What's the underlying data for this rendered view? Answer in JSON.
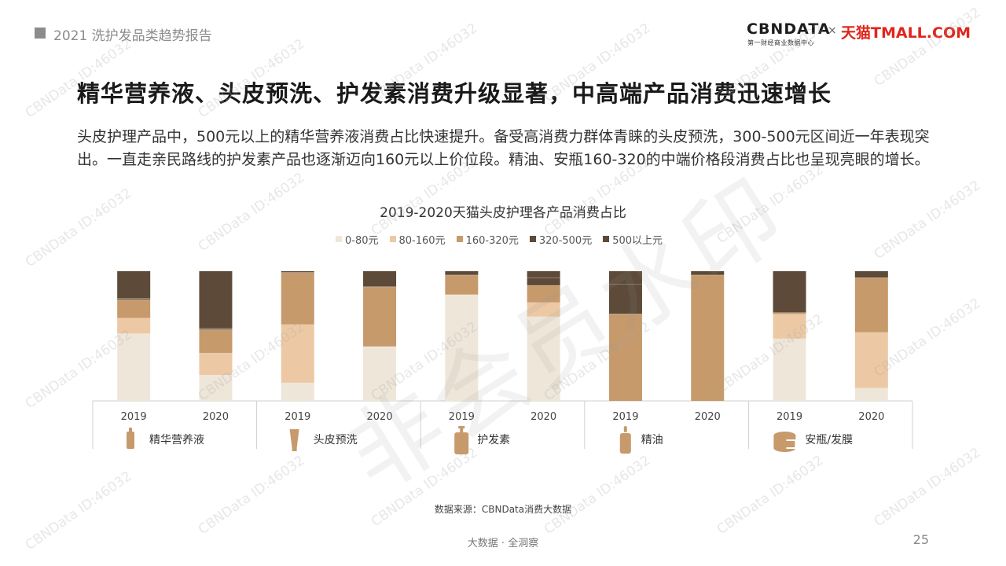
{
  "header": {
    "report_title": "2021 洗护发品类趋势报告",
    "brand_cbn": "CBNDATA",
    "brand_cbn_sub": "第一财经商业数据中心",
    "brand_x": "×",
    "brand_tmall": "天猫TMALL.COM"
  },
  "title": "精华营养液、头皮预洗、护发素消费升级显著，中高端产品消费迅速增长",
  "description": "头皮护理产品中，500元以上的精华营养液消费占比快速提升。备受高消费力群体青睐的头皮预洗，300-500元区间近一年表现突出。一直走亲民路线的护发素产品也逐渐迈向160元以上价位段。精油、安瓶160-320的中端价格段消费占比也呈现亮眼的增长。",
  "chart_data": {
    "type": "bar",
    "stacked": true,
    "normalized": true,
    "title": "2019-2020天猫头皮护理各产品消费占比",
    "legend_position": "top",
    "series_names": [
      "0-80元",
      "80-160元",
      "160-320元",
      "320-500元",
      "500以上元"
    ],
    "colors": [
      "#efe6da",
      "#ecc9a4",
      "#c69a6b",
      "#5d4a38",
      "#5d4a38"
    ],
    "groups": [
      {
        "name": "精华营养液",
        "icon": "serum-bottle-icon",
        "bars": [
          {
            "year": "2019",
            "values": [
              52,
              12,
              14,
              1,
              21
            ]
          },
          {
            "year": "2020",
            "values": [
              20,
              17,
              18,
              1,
              44
            ]
          }
        ]
      },
      {
        "name": "头皮预洗",
        "icon": "tube-icon",
        "bars": [
          {
            "year": "2019",
            "values": [
              14,
              45,
              40,
              0,
              1
            ]
          },
          {
            "year": "2020",
            "values": [
              42,
              0,
              46,
              0,
              12
            ]
          }
        ]
      },
      {
        "name": "护发素",
        "icon": "pump-bottle-icon",
        "bars": [
          {
            "year": "2019",
            "values": [
              82,
              0,
              15,
              0,
              3
            ]
          },
          {
            "year": "2020",
            "values": [
              65,
              11,
              13,
              6,
              5
            ]
          }
        ]
      },
      {
        "name": "精油",
        "icon": "dropper-bottle-icon",
        "bars": [
          {
            "year": "2019",
            "values": [
              0,
              0,
              67,
              23,
              10
            ]
          },
          {
            "year": "2020",
            "values": [
              0,
              0,
              97,
              0,
              3
            ]
          }
        ]
      },
      {
        "name": "安瓶/发膜",
        "icon": "jar-icon",
        "bars": [
          {
            "year": "2019",
            "values": [
              48,
              19,
              1,
              0,
              32
            ]
          },
          {
            "year": "2020",
            "values": [
              10,
              43,
              42,
              0,
              5
            ]
          }
        ]
      }
    ]
  },
  "source": "数据来源：CBNData消费大数据",
  "footer": "大数据 · 全洞察",
  "page_number": "25",
  "watermark_text": "CBNData ID:46032",
  "stamp_text": "非会员水印"
}
